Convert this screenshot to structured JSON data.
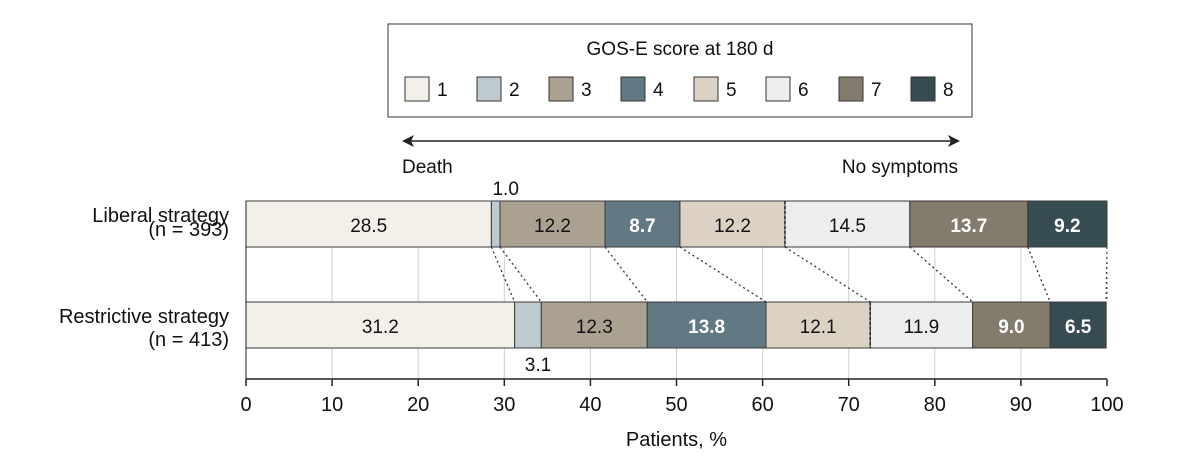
{
  "chart_data": {
    "type": "bar",
    "orientation": "horizontal",
    "stacked": true,
    "legend": {
      "title": "GOS-E score at 180 d",
      "placement": "top",
      "entries": [
        "1",
        "2",
        "3",
        "4",
        "5",
        "6",
        "7",
        "8"
      ]
    },
    "scale_arrow": {
      "left_label": "Death",
      "right_label": "No symptoms"
    },
    "categories": [
      {
        "name": "Liberal strategy",
        "n_label": "(n = 393)"
      },
      {
        "name": "Restrictive strategy",
        "n_label": "(n = 413)"
      }
    ],
    "series": [
      {
        "name": "1",
        "color": "#f2f0e8",
        "values": [
          28.5,
          31.2
        ],
        "labels": [
          "28.5",
          "31.2"
        ]
      },
      {
        "name": "2",
        "color": "#bfcad0",
        "values": [
          1.0,
          3.1
        ],
        "labels": [
          "1.0",
          "3.1"
        ]
      },
      {
        "name": "3",
        "color": "#aba190",
        "values": [
          12.2,
          12.3
        ],
        "labels": [
          "12.2",
          "12.3"
        ]
      },
      {
        "name": "4",
        "color": "#617982",
        "values": [
          8.7,
          13.8
        ],
        "labels": [
          "8.7",
          "13.8"
        ]
      },
      {
        "name": "5",
        "color": "#dbd2c3",
        "values": [
          12.2,
          12.1
        ],
        "labels": [
          "12.2",
          "12.1"
        ]
      },
      {
        "name": "6",
        "color": "#ebeeed",
        "values": [
          14.5,
          11.9
        ],
        "labels": [
          "14.5",
          "11.9"
        ]
      },
      {
        "name": "7",
        "color": "#837b6b",
        "values": [
          13.7,
          9.0
        ],
        "labels": [
          "13.7",
          "9.0"
        ]
      },
      {
        "name": "8",
        "color": "#374b53",
        "values": [
          9.2,
          6.5
        ],
        "labels": [
          "9.2",
          "6.5"
        ]
      }
    ],
    "xlabel": "Patients, %",
    "xlim": [
      0,
      100
    ],
    "xticks": [
      0,
      10,
      20,
      30,
      40,
      50,
      60,
      70,
      80,
      90,
      100
    ],
    "grid": true,
    "dark_segments": [
      "4",
      "7",
      "8"
    ]
  }
}
